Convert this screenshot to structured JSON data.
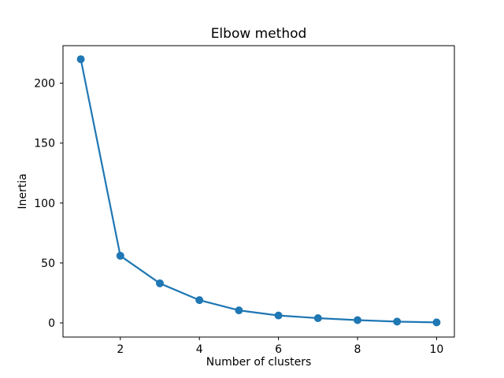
{
  "chart_data": {
    "type": "line",
    "title": "Elbow method",
    "xlabel": "Number of clusters",
    "ylabel": "Inertia",
    "x": [
      1,
      2,
      3,
      4,
      5,
      6,
      7,
      8,
      9,
      10
    ],
    "y": [
      220,
      56,
      33,
      19,
      10.5,
      6.2,
      4.0,
      2.3,
      1.1,
      0.4
    ],
    "xticks": [
      2,
      4,
      6,
      8,
      10
    ],
    "yticks": [
      0,
      50,
      100,
      150,
      200
    ],
    "xlim": [
      0.55,
      10.45
    ],
    "ylim": [
      -11.8,
      231.3
    ],
    "line_color": "#1f77b4",
    "marker": "circle",
    "grid": false,
    "background": "#ffffff",
    "text_color": "#000000"
  }
}
